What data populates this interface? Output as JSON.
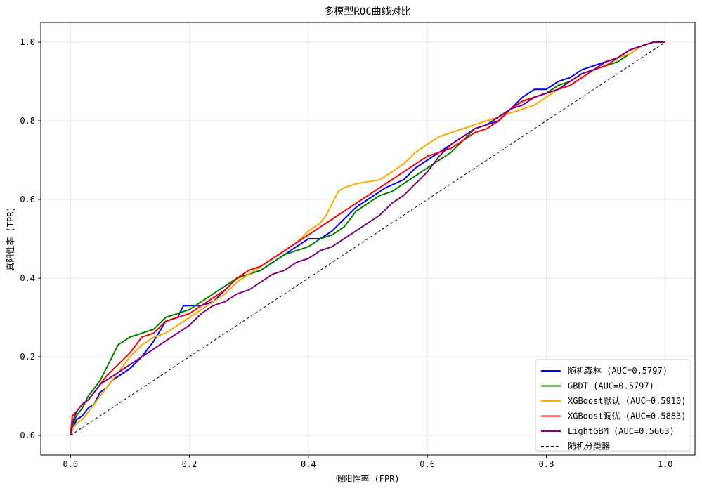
{
  "chart_data": {
    "type": "line",
    "title": "多模型ROC曲线对比",
    "xlabel": "假阳性率 (FPR)",
    "ylabel": "真阳性率 (TPR)",
    "xlim": [
      -0.05,
      1.05
    ],
    "ylim": [
      -0.05,
      1.05
    ],
    "xticks": [
      0.0,
      0.2,
      0.4,
      0.6,
      0.8,
      1.0
    ],
    "yticks": [
      0.0,
      0.2,
      0.4,
      0.6,
      0.8,
      1.0
    ],
    "xtick_labels": [
      "0.0",
      "0.2",
      "0.4",
      "0.6",
      "0.8",
      "1.0"
    ],
    "ytick_labels": [
      "0.0",
      "0.2",
      "0.4",
      "0.6",
      "0.8",
      "1.0"
    ],
    "grid": true,
    "legend_position": "lower-right",
    "series": [
      {
        "name": "随机森林 (AUC=0.5797)",
        "color": "#0000ff",
        "style": "solid",
        "points": [
          [
            0,
            0
          ],
          [
            0.005,
            0.02
          ],
          [
            0.01,
            0.04
          ],
          [
            0.02,
            0.05
          ],
          [
            0.03,
            0.07
          ],
          [
            0.04,
            0.08
          ],
          [
            0.05,
            0.11
          ],
          [
            0.06,
            0.12
          ],
          [
            0.07,
            0.14
          ],
          [
            0.08,
            0.15
          ],
          [
            0.1,
            0.17
          ],
          [
            0.12,
            0.2
          ],
          [
            0.14,
            0.24
          ],
          [
            0.16,
            0.29
          ],
          [
            0.18,
            0.3
          ],
          [
            0.19,
            0.33
          ],
          [
            0.22,
            0.33
          ],
          [
            0.24,
            0.34
          ],
          [
            0.26,
            0.37
          ],
          [
            0.28,
            0.4
          ],
          [
            0.3,
            0.41
          ],
          [
            0.32,
            0.42
          ],
          [
            0.34,
            0.44
          ],
          [
            0.36,
            0.46
          ],
          [
            0.38,
            0.48
          ],
          [
            0.4,
            0.5
          ],
          [
            0.42,
            0.5
          ],
          [
            0.44,
            0.52
          ],
          [
            0.46,
            0.55
          ],
          [
            0.48,
            0.58
          ],
          [
            0.5,
            0.6
          ],
          [
            0.53,
            0.63
          ],
          [
            0.56,
            0.65
          ],
          [
            0.58,
            0.68
          ],
          [
            0.6,
            0.7
          ],
          [
            0.62,
            0.72
          ],
          [
            0.64,
            0.74
          ],
          [
            0.66,
            0.76
          ],
          [
            0.68,
            0.78
          ],
          [
            0.7,
            0.79
          ],
          [
            0.72,
            0.8
          ],
          [
            0.74,
            0.83
          ],
          [
            0.76,
            0.86
          ],
          [
            0.78,
            0.88
          ],
          [
            0.8,
            0.88
          ],
          [
            0.82,
            0.9
          ],
          [
            0.84,
            0.91
          ],
          [
            0.86,
            0.93
          ],
          [
            0.88,
            0.94
          ],
          [
            0.9,
            0.95
          ],
          [
            0.92,
            0.96
          ],
          [
            0.94,
            0.98
          ],
          [
            0.96,
            0.99
          ],
          [
            0.98,
            1.0
          ],
          [
            1.0,
            1.0
          ]
        ]
      },
      {
        "name": "GBDT (AUC=0.5797)",
        "color": "#008000",
        "style": "solid",
        "points": [
          [
            0,
            0
          ],
          [
            0.005,
            0.03
          ],
          [
            0.01,
            0.05
          ],
          [
            0.02,
            0.07
          ],
          [
            0.03,
            0.1
          ],
          [
            0.04,
            0.12
          ],
          [
            0.05,
            0.14
          ],
          [
            0.06,
            0.17
          ],
          [
            0.07,
            0.2
          ],
          [
            0.08,
            0.23
          ],
          [
            0.1,
            0.25
          ],
          [
            0.12,
            0.26
          ],
          [
            0.14,
            0.27
          ],
          [
            0.16,
            0.3
          ],
          [
            0.18,
            0.31
          ],
          [
            0.2,
            0.32
          ],
          [
            0.22,
            0.34
          ],
          [
            0.24,
            0.36
          ],
          [
            0.26,
            0.38
          ],
          [
            0.28,
            0.4
          ],
          [
            0.3,
            0.41
          ],
          [
            0.32,
            0.42
          ],
          [
            0.34,
            0.44
          ],
          [
            0.36,
            0.46
          ],
          [
            0.38,
            0.47
          ],
          [
            0.4,
            0.48
          ],
          [
            0.42,
            0.5
          ],
          [
            0.44,
            0.51
          ],
          [
            0.46,
            0.53
          ],
          [
            0.48,
            0.57
          ],
          [
            0.5,
            0.59
          ],
          [
            0.52,
            0.61
          ],
          [
            0.54,
            0.62
          ],
          [
            0.56,
            0.64
          ],
          [
            0.58,
            0.66
          ],
          [
            0.6,
            0.68
          ],
          [
            0.62,
            0.7
          ],
          [
            0.64,
            0.72
          ],
          [
            0.66,
            0.75
          ],
          [
            0.68,
            0.78
          ],
          [
            0.7,
            0.79
          ],
          [
            0.72,
            0.81
          ],
          [
            0.74,
            0.83
          ],
          [
            0.76,
            0.85
          ],
          [
            0.78,
            0.86
          ],
          [
            0.8,
            0.87
          ],
          [
            0.82,
            0.89
          ],
          [
            0.84,
            0.9
          ],
          [
            0.86,
            0.92
          ],
          [
            0.88,
            0.93
          ],
          [
            0.9,
            0.94
          ],
          [
            0.92,
            0.95
          ],
          [
            0.94,
            0.97
          ],
          [
            0.96,
            0.99
          ],
          [
            0.98,
            1.0
          ],
          [
            1.0,
            1.0
          ]
        ]
      },
      {
        "name": "XGBoost默认 (AUC=0.5910)",
        "color": "#ffa500",
        "style": "solid",
        "points": [
          [
            0,
            0
          ],
          [
            0.005,
            0.02
          ],
          [
            0.01,
            0.03
          ],
          [
            0.02,
            0.04
          ],
          [
            0.03,
            0.06
          ],
          [
            0.04,
            0.08
          ],
          [
            0.05,
            0.1
          ],
          [
            0.06,
            0.12
          ],
          [
            0.08,
            0.16
          ],
          [
            0.1,
            0.2
          ],
          [
            0.12,
            0.23
          ],
          [
            0.14,
            0.25
          ],
          [
            0.16,
            0.26
          ],
          [
            0.18,
            0.28
          ],
          [
            0.2,
            0.3
          ],
          [
            0.22,
            0.32
          ],
          [
            0.24,
            0.34
          ],
          [
            0.26,
            0.36
          ],
          [
            0.28,
            0.39
          ],
          [
            0.3,
            0.41
          ],
          [
            0.32,
            0.43
          ],
          [
            0.34,
            0.45
          ],
          [
            0.36,
            0.47
          ],
          [
            0.38,
            0.49
          ],
          [
            0.4,
            0.52
          ],
          [
            0.42,
            0.54
          ],
          [
            0.43,
            0.56
          ],
          [
            0.44,
            0.59
          ],
          [
            0.45,
            0.62
          ],
          [
            0.46,
            0.63
          ],
          [
            0.48,
            0.64
          ],
          [
            0.5,
            0.645
          ],
          [
            0.52,
            0.65
          ],
          [
            0.54,
            0.67
          ],
          [
            0.56,
            0.69
          ],
          [
            0.58,
            0.72
          ],
          [
            0.6,
            0.74
          ],
          [
            0.62,
            0.76
          ],
          [
            0.64,
            0.77
          ],
          [
            0.66,
            0.78
          ],
          [
            0.68,
            0.79
          ],
          [
            0.7,
            0.8
          ],
          [
            0.72,
            0.81
          ],
          [
            0.74,
            0.82
          ],
          [
            0.76,
            0.83
          ],
          [
            0.78,
            0.84
          ],
          [
            0.8,
            0.86
          ],
          [
            0.82,
            0.88
          ],
          [
            0.84,
            0.89
          ],
          [
            0.86,
            0.91
          ],
          [
            0.88,
            0.93
          ],
          [
            0.9,
            0.95
          ],
          [
            0.92,
            0.96
          ],
          [
            0.94,
            0.97
          ],
          [
            0.96,
            0.99
          ],
          [
            0.98,
            1.0
          ],
          [
            1.0,
            1.0
          ]
        ]
      },
      {
        "name": "XGBoost调优 (AUC=0.5883)",
        "color": "#ff0000",
        "style": "solid",
        "points": [
          [
            0,
            0
          ],
          [
            0.003,
            0.05
          ],
          [
            0.01,
            0.06
          ],
          [
            0.02,
            0.08
          ],
          [
            0.03,
            0.09
          ],
          [
            0.04,
            0.11
          ],
          [
            0.05,
            0.13
          ],
          [
            0.06,
            0.15
          ],
          [
            0.08,
            0.18
          ],
          [
            0.1,
            0.21
          ],
          [
            0.12,
            0.25
          ],
          [
            0.14,
            0.26
          ],
          [
            0.16,
            0.29
          ],
          [
            0.18,
            0.3
          ],
          [
            0.2,
            0.31
          ],
          [
            0.22,
            0.33
          ],
          [
            0.24,
            0.35
          ],
          [
            0.26,
            0.37
          ],
          [
            0.28,
            0.4
          ],
          [
            0.3,
            0.42
          ],
          [
            0.32,
            0.43
          ],
          [
            0.34,
            0.45
          ],
          [
            0.36,
            0.47
          ],
          [
            0.38,
            0.49
          ],
          [
            0.4,
            0.51
          ],
          [
            0.42,
            0.53
          ],
          [
            0.44,
            0.55
          ],
          [
            0.46,
            0.57
          ],
          [
            0.48,
            0.59
          ],
          [
            0.5,
            0.61
          ],
          [
            0.52,
            0.63
          ],
          [
            0.54,
            0.65
          ],
          [
            0.56,
            0.67
          ],
          [
            0.58,
            0.69
          ],
          [
            0.6,
            0.71
          ],
          [
            0.62,
            0.72
          ],
          [
            0.64,
            0.73
          ],
          [
            0.66,
            0.75
          ],
          [
            0.68,
            0.77
          ],
          [
            0.7,
            0.78
          ],
          [
            0.72,
            0.8
          ],
          [
            0.74,
            0.83
          ],
          [
            0.76,
            0.85
          ],
          [
            0.78,
            0.86
          ],
          [
            0.8,
            0.87
          ],
          [
            0.82,
            0.88
          ],
          [
            0.84,
            0.89
          ],
          [
            0.86,
            0.91
          ],
          [
            0.88,
            0.93
          ],
          [
            0.9,
            0.94
          ],
          [
            0.92,
            0.96
          ],
          [
            0.94,
            0.98
          ],
          [
            0.96,
            0.99
          ],
          [
            0.98,
            1.0
          ],
          [
            1.0,
            1.0
          ]
        ]
      },
      {
        "name": "LightGBM (AUC=0.5663)",
        "color": "#800080",
        "style": "solid",
        "points": [
          [
            0,
            0
          ],
          [
            0.005,
            0.04
          ],
          [
            0.01,
            0.06
          ],
          [
            0.02,
            0.08
          ],
          [
            0.03,
            0.09
          ],
          [
            0.04,
            0.11
          ],
          [
            0.05,
            0.13
          ],
          [
            0.06,
            0.14
          ],
          [
            0.08,
            0.16
          ],
          [
            0.1,
            0.18
          ],
          [
            0.12,
            0.2
          ],
          [
            0.14,
            0.22
          ],
          [
            0.16,
            0.24
          ],
          [
            0.18,
            0.26
          ],
          [
            0.2,
            0.28
          ],
          [
            0.22,
            0.31
          ],
          [
            0.24,
            0.33
          ],
          [
            0.26,
            0.34
          ],
          [
            0.28,
            0.36
          ],
          [
            0.3,
            0.37
          ],
          [
            0.32,
            0.39
          ],
          [
            0.34,
            0.41
          ],
          [
            0.36,
            0.42
          ],
          [
            0.38,
            0.44
          ],
          [
            0.4,
            0.45
          ],
          [
            0.42,
            0.47
          ],
          [
            0.44,
            0.48
          ],
          [
            0.46,
            0.5
          ],
          [
            0.48,
            0.52
          ],
          [
            0.5,
            0.54
          ],
          [
            0.52,
            0.56
          ],
          [
            0.54,
            0.59
          ],
          [
            0.56,
            0.61
          ],
          [
            0.58,
            0.64
          ],
          [
            0.6,
            0.67
          ],
          [
            0.62,
            0.71
          ],
          [
            0.64,
            0.74
          ],
          [
            0.66,
            0.76
          ],
          [
            0.68,
            0.78
          ],
          [
            0.7,
            0.79
          ],
          [
            0.72,
            0.81
          ],
          [
            0.74,
            0.83
          ],
          [
            0.76,
            0.84
          ],
          [
            0.78,
            0.86
          ],
          [
            0.8,
            0.87
          ],
          [
            0.82,
            0.88
          ],
          [
            0.84,
            0.9
          ],
          [
            0.86,
            0.92
          ],
          [
            0.88,
            0.93
          ],
          [
            0.9,
            0.95
          ],
          [
            0.92,
            0.96
          ],
          [
            0.94,
            0.98
          ],
          [
            0.96,
            0.99
          ],
          [
            0.98,
            1.0
          ],
          [
            1.0,
            1.0
          ]
        ]
      },
      {
        "name": "随机分类器",
        "color": "#000000",
        "style": "dashed",
        "points": [
          [
            0,
            0
          ],
          [
            1,
            1
          ]
        ]
      }
    ]
  }
}
